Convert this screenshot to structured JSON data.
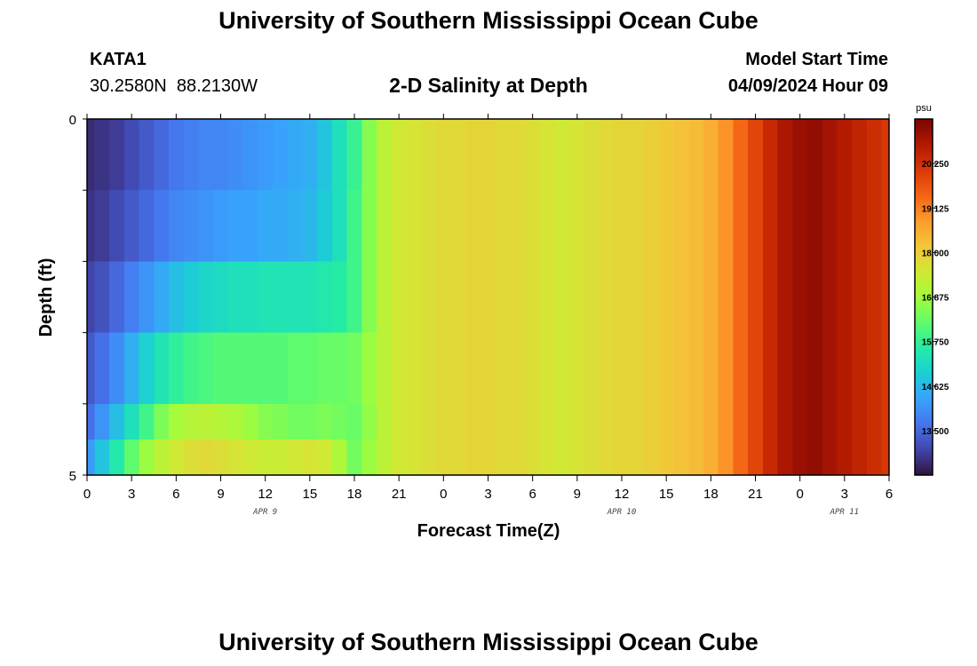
{
  "header": {
    "title": "University of Southern Mississippi Ocean Cube",
    "station_id": "KATA1",
    "station_coords": "30.2580N  88.2130W",
    "plot_title": "2-D Salinity at Depth",
    "start_label": "Model Start Time",
    "start_value": "04/09/2024 Hour 09"
  },
  "footer": {
    "title": "University of Southern Mississippi Ocean Cube"
  },
  "chart_data": {
    "type": "heatmap",
    "title": "2-D Salinity at Depth",
    "xlabel": "Forecast Time(Z)",
    "ylabel": "Depth (ft)",
    "x_tick_labels": [
      "0",
      "3",
      "6",
      "9",
      "12",
      "15",
      "18",
      "21",
      "0",
      "3",
      "6",
      "9",
      "12",
      "15",
      "18",
      "21",
      "0",
      "3",
      "6"
    ],
    "x_date_labels": [
      {
        "label": "APR 9",
        "at_tick": 4
      },
      {
        "label": "APR 10",
        "at_tick": 12
      },
      {
        "label": "APR 11",
        "at_tick": 17
      }
    ],
    "x_range_hours": [
      0,
      54
    ],
    "y_tick_labels": [
      {
        "label": "0",
        "depth": 0
      },
      {
        "label": "5",
        "depth": 5
      }
    ],
    "ylim": [
      0,
      5
    ],
    "depth_levels": [
      0,
      1,
      2,
      3,
      4,
      4.5
    ],
    "colorbar": {
      "unit": "psu",
      "range": [
        12.375,
        21.375
      ],
      "labels": [
        "20.250",
        "19.125",
        "18.000",
        "16.875",
        "15.750",
        "14.625",
        "13.500"
      ],
      "label_values": [
        20.25,
        19.125,
        18.0,
        16.875,
        15.75,
        14.625,
        13.5
      ],
      "colors": [
        "#30123b",
        "#4145ab",
        "#4675ed",
        "#39a2fc",
        "#1bcfd4",
        "#24eca6",
        "#61fc6c",
        "#a4fc3b",
        "#d1e834",
        "#f3c63a",
        "#fe9b2d",
        "#f36315",
        "#d93806",
        "#b11901",
        "#7a0403"
      ]
    },
    "x_hours": [
      0,
      1,
      2,
      3,
      4,
      5,
      6,
      7,
      8,
      9,
      10,
      11,
      12,
      13,
      14,
      15,
      16,
      17,
      18,
      19,
      20,
      21,
      22,
      23,
      24,
      25,
      26,
      27,
      28,
      29,
      30,
      31,
      32,
      33,
      34,
      35,
      36,
      37,
      38,
      39,
      40,
      41,
      42,
      43,
      44,
      45,
      46,
      47,
      48,
      49,
      50,
      51,
      52,
      53,
      54
    ],
    "series": [
      {
        "depth_band": "0-1",
        "values": [
          12.7,
          12.8,
          12.9,
          13.1,
          13.3,
          13.5,
          13.7,
          13.8,
          13.9,
          13.9,
          14.0,
          14.1,
          14.2,
          14.3,
          14.4,
          14.5,
          14.8,
          15.3,
          15.8,
          16.6,
          17.2,
          17.5,
          17.6,
          17.7,
          17.8,
          17.8,
          17.9,
          17.9,
          17.8,
          17.8,
          17.7,
          17.6,
          17.5,
          17.6,
          17.7,
          17.8,
          17.9,
          17.9,
          18.0,
          18.1,
          18.2,
          18.3,
          18.5,
          18.9,
          19.4,
          19.9,
          20.4,
          20.8,
          21.0,
          21.1,
          20.9,
          20.7,
          20.5,
          20.3,
          20.1
        ]
      },
      {
        "depth_band": "1-2",
        "values": [
          12.8,
          12.9,
          13.1,
          13.3,
          13.5,
          13.7,
          13.9,
          14.0,
          14.1,
          14.2,
          14.3,
          14.3,
          14.4,
          14.4,
          14.5,
          14.6,
          14.9,
          15.3,
          15.9,
          16.6,
          17.2,
          17.5,
          17.6,
          17.7,
          17.8,
          17.8,
          17.9,
          17.9,
          17.8,
          17.8,
          17.7,
          17.6,
          17.5,
          17.6,
          17.7,
          17.8,
          17.9,
          17.9,
          18.0,
          18.1,
          18.2,
          18.3,
          18.5,
          18.9,
          19.4,
          19.9,
          20.4,
          20.8,
          21.0,
          21.1,
          20.9,
          20.7,
          20.5,
          20.3,
          20.1
        ]
      },
      {
        "depth_band": "2-3",
        "values": [
          13.0,
          13.2,
          13.5,
          13.8,
          14.1,
          14.4,
          14.7,
          14.9,
          15.1,
          15.2,
          15.3,
          15.3,
          15.4,
          15.4,
          15.4,
          15.4,
          15.5,
          15.6,
          15.9,
          16.6,
          17.2,
          17.5,
          17.6,
          17.7,
          17.8,
          17.8,
          17.9,
          17.9,
          17.8,
          17.8,
          17.7,
          17.6,
          17.5,
          17.6,
          17.7,
          17.8,
          17.9,
          17.9,
          18.0,
          18.1,
          18.2,
          18.3,
          18.5,
          18.9,
          19.4,
          19.9,
          20.4,
          20.8,
          21.0,
          21.1,
          20.9,
          20.7,
          20.5,
          20.3,
          20.1
        ]
      },
      {
        "depth_band": "3-4",
        "values": [
          13.3,
          13.6,
          14.0,
          14.5,
          15.0,
          15.4,
          15.7,
          15.9,
          16.0,
          16.1,
          16.1,
          16.1,
          16.1,
          16.1,
          16.2,
          16.2,
          16.3,
          16.3,
          16.4,
          16.8,
          17.2,
          17.5,
          17.6,
          17.7,
          17.8,
          17.8,
          17.9,
          17.9,
          17.8,
          17.8,
          17.7,
          17.6,
          17.5,
          17.6,
          17.7,
          17.8,
          17.9,
          17.9,
          18.0,
          18.1,
          18.2,
          18.3,
          18.5,
          18.9,
          19.4,
          19.9,
          20.4,
          20.8,
          21.0,
          21.1,
          20.9,
          20.7,
          20.5,
          20.3,
          20.1
        ]
      },
      {
        "depth_band": "4-4.5",
        "values": [
          13.6,
          14.1,
          14.7,
          15.3,
          15.9,
          16.5,
          16.9,
          17.1,
          17.2,
          17.1,
          17.0,
          16.8,
          16.6,
          16.5,
          16.4,
          16.4,
          16.5,
          16.4,
          16.3,
          16.7,
          17.2,
          17.5,
          17.6,
          17.7,
          17.8,
          17.8,
          17.9,
          17.9,
          17.8,
          17.8,
          17.7,
          17.6,
          17.5,
          17.6,
          17.7,
          17.8,
          17.9,
          17.9,
          18.0,
          18.1,
          18.2,
          18.3,
          18.5,
          18.9,
          19.4,
          19.9,
          20.4,
          20.8,
          21.0,
          21.1,
          20.9,
          20.7,
          20.5,
          20.3,
          20.1
        ]
      },
      {
        "depth_band": "4.5-5",
        "values": [
          14.2,
          14.8,
          15.5,
          16.2,
          16.8,
          17.2,
          17.5,
          17.7,
          17.8,
          17.7,
          17.6,
          17.5,
          17.4,
          17.4,
          17.5,
          17.6,
          17.5,
          17.0,
          16.4,
          16.8,
          17.2,
          17.5,
          17.6,
          17.7,
          17.8,
          17.8,
          17.9,
          17.9,
          17.8,
          17.8,
          17.7,
          17.6,
          17.5,
          17.6,
          17.7,
          17.8,
          17.9,
          17.9,
          18.0,
          18.1,
          18.2,
          18.3,
          18.5,
          18.9,
          19.4,
          19.9,
          20.4,
          20.8,
          21.0,
          21.1,
          20.9,
          20.7,
          20.5,
          20.3,
          20.1
        ]
      }
    ]
  }
}
